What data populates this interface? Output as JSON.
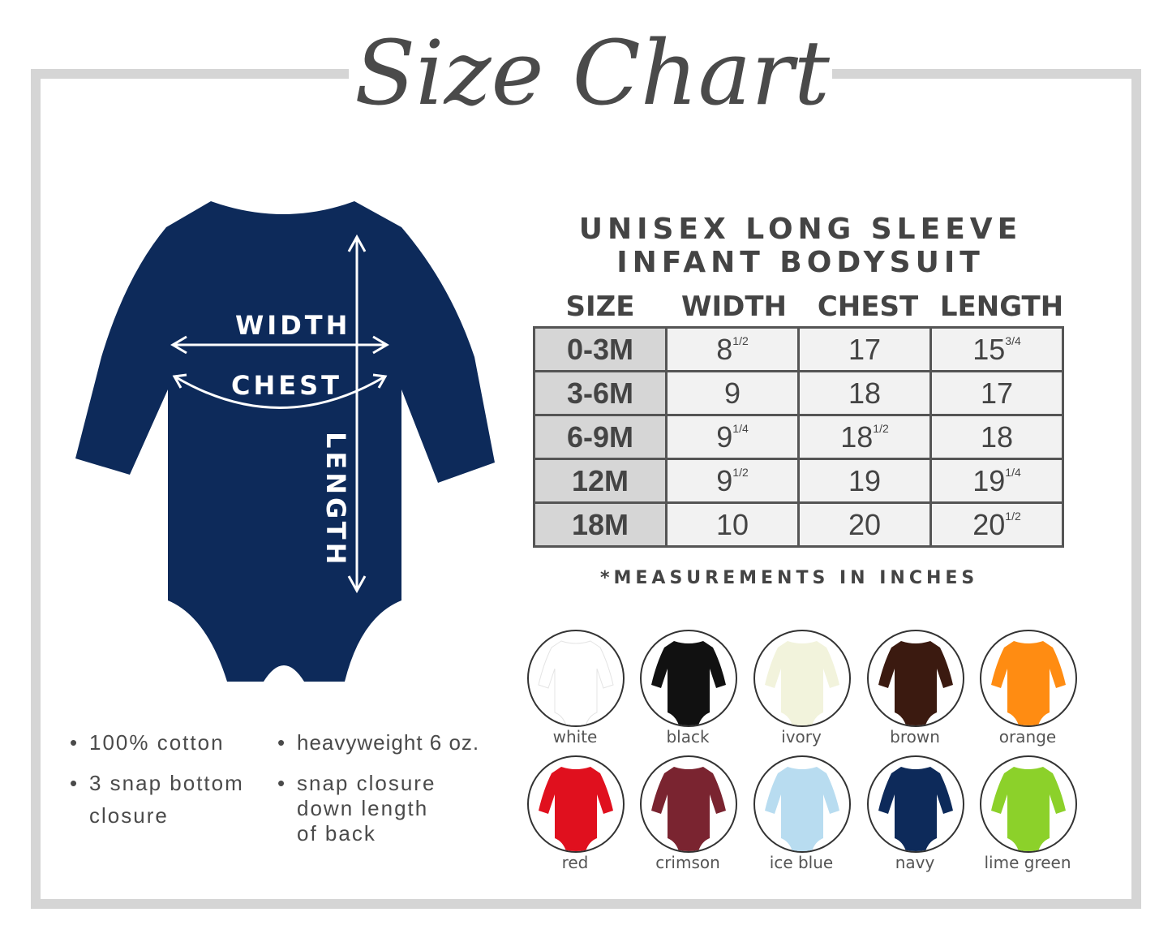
{
  "title": "Size Chart",
  "heading": {
    "line1": "UNISEX LONG SLEEVE",
    "line2": "INFANT BODYSUIT"
  },
  "diagram": {
    "width_label": "WIDTH",
    "chest_label": "CHEST",
    "length_label": "LENGTH",
    "garment_color": "#0d2a5a"
  },
  "table": {
    "headers": [
      "SIZE",
      "WIDTH",
      "CHEST",
      "LENGTH"
    ],
    "rows": [
      {
        "size": "0-3M",
        "width": {
          "whole": "8",
          "frac": "1/2"
        },
        "chest": {
          "whole": "17",
          "frac": ""
        },
        "length": {
          "whole": "15",
          "frac": "3/4"
        }
      },
      {
        "size": "3-6M",
        "width": {
          "whole": "9",
          "frac": ""
        },
        "chest": {
          "whole": "18",
          "frac": ""
        },
        "length": {
          "whole": "17",
          "frac": ""
        }
      },
      {
        "size": "6-9M",
        "width": {
          "whole": "9",
          "frac": "1/4"
        },
        "chest": {
          "whole": "18",
          "frac": "1/2"
        },
        "length": {
          "whole": "18",
          "frac": ""
        }
      },
      {
        "size": "12M",
        "width": {
          "whole": "9",
          "frac": "1/2"
        },
        "chest": {
          "whole": "19",
          "frac": ""
        },
        "length": {
          "whole": "19",
          "frac": "1/4"
        }
      },
      {
        "size": "18M",
        "width": {
          "whole": "10",
          "frac": ""
        },
        "chest": {
          "whole": "20",
          "frac": ""
        },
        "length": {
          "whole": "20",
          "frac": "1/2"
        }
      }
    ],
    "note": "*MEASUREMENTS IN INCHES"
  },
  "features": {
    "f1": "100% cotton",
    "f2": "heavyweight 6 oz.",
    "f3a": "3 snap bottom",
    "f3b": "closure",
    "f4a": "snap closure",
    "f4b": "down length",
    "f4c": "of back"
  },
  "colors": [
    {
      "name": "white",
      "hex": "#ffffff"
    },
    {
      "name": "black",
      "hex": "#111111"
    },
    {
      "name": "ivory",
      "hex": "#f2f3dc"
    },
    {
      "name": "brown",
      "hex": "#3b1a10"
    },
    {
      "name": "orange",
      "hex": "#ff8c12"
    },
    {
      "name": "red",
      "hex": "#e0101e"
    },
    {
      "name": "crimson",
      "hex": "#7a2430"
    },
    {
      "name": "ice blue",
      "hex": "#b8dcf0"
    },
    {
      "name": "navy",
      "hex": "#0d2a5a"
    },
    {
      "name": "lime green",
      "hex": "#8cd12a"
    }
  ]
}
